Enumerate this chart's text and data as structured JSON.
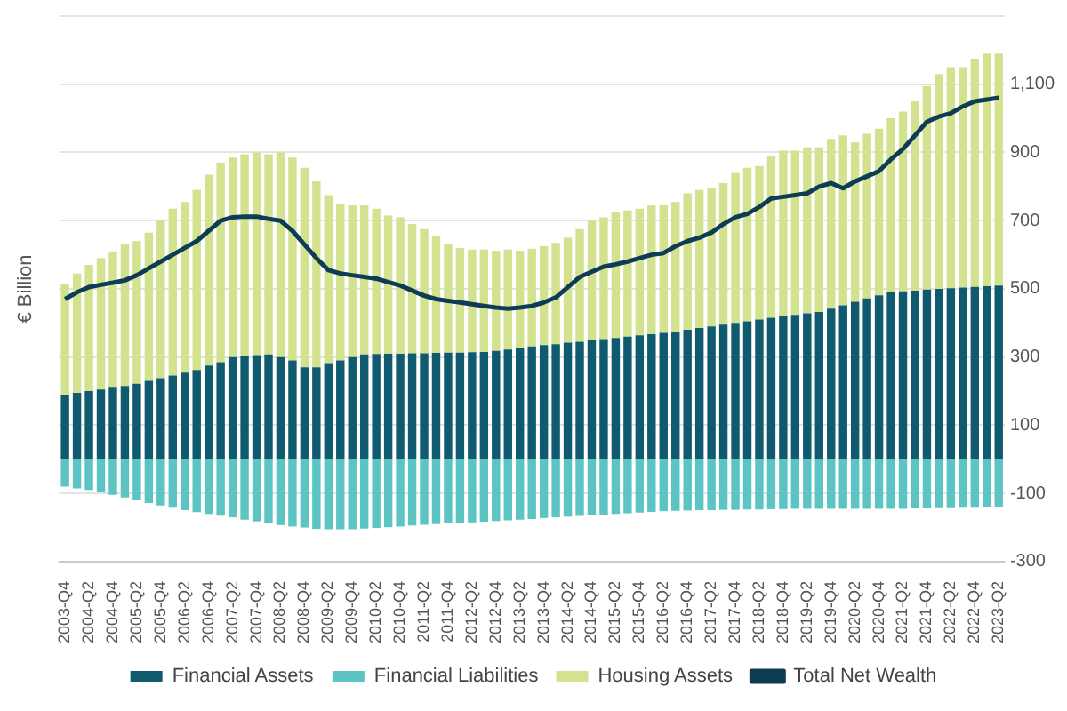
{
  "chart_data": {
    "type": "bar",
    "stacked": true,
    "ylabel": "€ Billion",
    "ylim": [
      -300,
      1300
    ],
    "yticks": [
      -300,
      -100,
      100,
      300,
      500,
      700,
      900,
      {
        "value": 1100,
        "label": "1,100"
      },
      {
        "value": 1300,
        "label": null
      }
    ],
    "grid": "y",
    "legend": "bottom",
    "categories": [
      "2003-Q4",
      null,
      "2004-Q2",
      null,
      "2004-Q4",
      null,
      "2005-Q2",
      null,
      "2005-Q4",
      null,
      "2006-Q2",
      null,
      "2006-Q4",
      null,
      "2007-Q2",
      null,
      "2007-Q4",
      null,
      "2008-Q2",
      null,
      "2008-Q4",
      null,
      "2009-Q2",
      null,
      "2009-Q4",
      null,
      "2010-Q2",
      null,
      "2010-Q4",
      null,
      "2011-Q2",
      null,
      "2011-Q4",
      null,
      "2012-Q2",
      null,
      "2012-Q4",
      null,
      "2013-Q2",
      null,
      "2013-Q4",
      null,
      "2014-Q2",
      null,
      "2014-Q4",
      null,
      "2015-Q2",
      null,
      "2015-Q4",
      null,
      "2016-Q2",
      null,
      "2016-Q4",
      null,
      "2017-Q2",
      null,
      "2017-Q4",
      null,
      "2018-Q2",
      null,
      "2018-Q4",
      null,
      "2019-Q2",
      null,
      "2019-Q4",
      null,
      "2020-Q2",
      null,
      "2020-Q4",
      null,
      "2021-Q2",
      null,
      "2021-Q4",
      null,
      "2022-Q2",
      null,
      "2022-Q4",
      null,
      "2023-Q2"
    ],
    "series": [
      {
        "name": "Financial Assets",
        "color": "#0f5a6e",
        "values": [
          190,
          195,
          200,
          205,
          210,
          215,
          222,
          230,
          238,
          246,
          254,
          262,
          275,
          285,
          300,
          304,
          306,
          308,
          300,
          290,
          270,
          270,
          280,
          290,
          300,
          308,
          309,
          310,
          310,
          311,
          311,
          312,
          313,
          313,
          314,
          315,
          318,
          322,
          326,
          331,
          335,
          338,
          342,
          345,
          349,
          353,
          356,
          360,
          364,
          367,
          371,
          375,
          380,
          385,
          390,
          395,
          400,
          405,
          410,
          415,
          420,
          424,
          428,
          432,
          442,
          452,
          462,
          472,
          481,
          490,
          493,
          495,
          498,
          500,
          502,
          504,
          506,
          508,
          510
        ]
      },
      {
        "name": "Financial Liabilities",
        "color": "#5cc4c2",
        "values": [
          -80,
          -85,
          -90,
          -97,
          -104,
          -112,
          -120,
          -128,
          -135,
          -142,
          -149,
          -155,
          -160,
          -165,
          -170,
          -177,
          -182,
          -188,
          -193,
          -197,
          -200,
          -204,
          -205,
          -205,
          -205,
          -203,
          -201,
          -199,
          -197,
          -194,
          -192,
          -190,
          -188,
          -187,
          -185,
          -183,
          -181,
          -179,
          -177,
          -175,
          -172,
          -170,
          -168,
          -166,
          -164,
          -162,
          -160,
          -158,
          -156,
          -154,
          -152,
          -151,
          -150,
          -149,
          -149,
          -148,
          -148,
          -147,
          -147,
          -146,
          -146,
          -145,
          -145,
          -145,
          -145,
          -145,
          -145,
          -145,
          -145,
          -145,
          -145,
          -144,
          -144,
          -143,
          -143,
          -142,
          -142,
          -141,
          -140
        ]
      },
      {
        "name": "Housing Assets",
        "color": "#d2e28e",
        "values": [
          325,
          350,
          370,
          385,
          400,
          415,
          418,
          435,
          462,
          489,
          501,
          528,
          560,
          585,
          585,
          591,
          594,
          587,
          600,
          595,
          585,
          545,
          495,
          460,
          445,
          437,
          426,
          405,
          400,
          379,
          364,
          343,
          317,
          307,
          301,
          300,
          294,
          293,
          286,
          287,
          290,
          297,
          308,
          330,
          351,
          357,
          369,
          370,
          371,
          378,
          374,
          380,
          400,
          405,
          405,
          415,
          440,
          450,
          450,
          475,
          485,
          481,
          487,
          483,
          498,
          498,
          468,
          483,
          489,
          510,
          527,
          555,
          597,
          630,
          648,
          646,
          669,
          682,
          680
        ]
      },
      {
        "name": "Total Net Wealth",
        "type": "line",
        "color": "#0e3c55",
        "values": [
          470,
          490,
          505,
          512,
          518,
          525,
          540,
          560,
          580,
          600,
          620,
          640,
          670,
          700,
          710,
          712,
          712,
          705,
          700,
          670,
          630,
          590,
          555,
          545,
          540,
          535,
          530,
          520,
          510,
          495,
          480,
          470,
          465,
          460,
          455,
          450,
          445,
          442,
          445,
          450,
          460,
          475,
          505,
          535,
          550,
          565,
          572,
          580,
          590,
          600,
          605,
          625,
          640,
          650,
          665,
          690,
          710,
          720,
          740,
          765,
          770,
          775,
          780,
          800,
          810,
          795,
          815,
          830,
          845,
          880,
          910,
          950,
          990,
          1005,
          1015,
          1035,
          1050,
          1055,
          1060
        ]
      }
    ]
  }
}
